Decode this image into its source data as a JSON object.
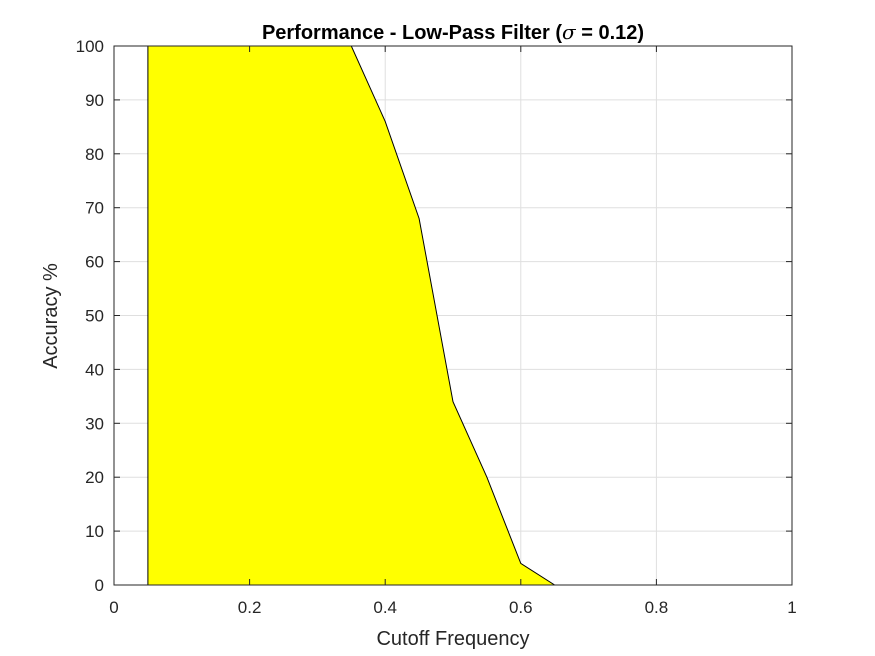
{
  "chart_data": {
    "type": "area",
    "title_main": "Performance - Low-Pass Filter (",
    "title_sigma": "σ",
    "title_tail": " = 0.12)",
    "xlabel": "Cutoff Frequency",
    "ylabel": "Accuracy %",
    "xlim": [
      0,
      1
    ],
    "ylim": [
      0,
      100
    ],
    "xticks": [
      0,
      0.2,
      0.4,
      0.6,
      0.8,
      1
    ],
    "xtick_labels": [
      "0",
      "0.2",
      "0.4",
      "0.6",
      "0.8",
      "1"
    ],
    "yticks": [
      0,
      10,
      20,
      30,
      40,
      50,
      60,
      70,
      80,
      90,
      100
    ],
    "ytick_labels": [
      "0",
      "10",
      "20",
      "30",
      "40",
      "50",
      "60",
      "70",
      "80",
      "90",
      "100"
    ],
    "grid": true,
    "series": [
      {
        "x": [
          0.05,
          0.1,
          0.15,
          0.2,
          0.25,
          0.3,
          0.35,
          0.4,
          0.45,
          0.5,
          0.55,
          0.6,
          0.65,
          0.7,
          0.75,
          0.8,
          0.85,
          0.9,
          0.95,
          1.0
        ],
        "values": [
          100,
          100,
          100,
          100,
          100,
          100,
          100,
          86,
          68,
          34,
          20,
          4,
          0,
          0,
          0,
          0,
          0,
          0,
          0,
          0
        ]
      }
    ],
    "fill_color": "#ffff00",
    "edge_color": "#000000"
  }
}
